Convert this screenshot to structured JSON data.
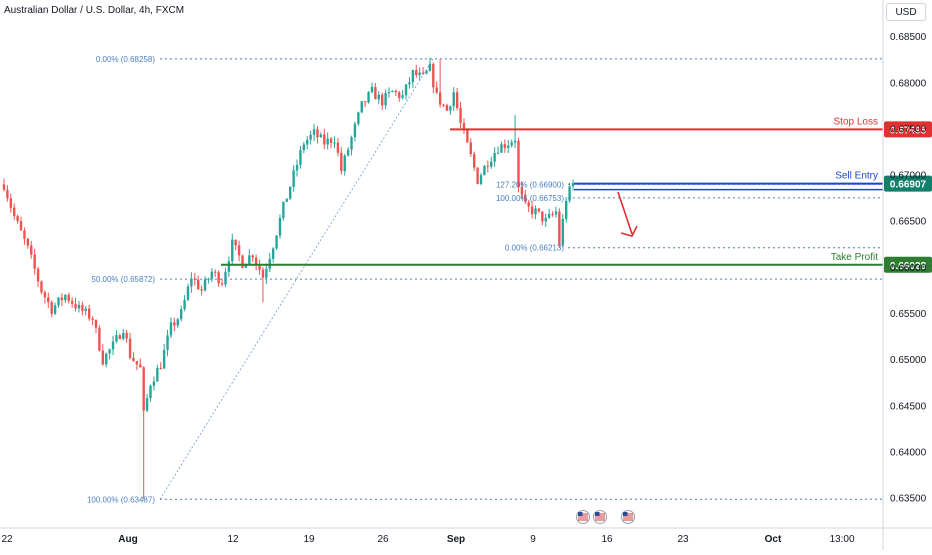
{
  "header": {
    "title": "Australian Dollar / U.S. Dollar, 4h, FXCM",
    "currency": "USD"
  },
  "colors": {
    "up": "#26a69a",
    "down": "#ef5350",
    "stop_loss": "#e03131",
    "sell_entry": "#1848cc",
    "take_profit": "#2e7d32",
    "fib": "#4a7fc2",
    "sell_entry_label_bg": "#12806b",
    "arrow": "#e03131"
  },
  "chart_data": {
    "type": "candlestick",
    "title": "Australian Dollar / U.S. Dollar, 4h, FXCM",
    "x_axis": {
      "tick_labels": [
        "22",
        "Aug",
        "12",
        "19",
        "26",
        "Sep",
        "9",
        "16",
        "23",
        "Oct",
        "13:00"
      ],
      "tick_bold": [
        false,
        true,
        false,
        false,
        false,
        true,
        false,
        false,
        false,
        true,
        false
      ]
    },
    "y_axis": {
      "position": "right",
      "range": [
        0.6345,
        0.6869
      ],
      "tick_labels": [
        "0.68500",
        "0.68000",
        "0.67500",
        "0.67000",
        "0.66500",
        "0.66000",
        "0.65500",
        "0.65000",
        "0.64500",
        "0.64000",
        "0.63500"
      ],
      "tick_values": [
        0.685,
        0.68,
        0.675,
        0.67,
        0.665,
        0.66,
        0.655,
        0.65,
        0.645,
        0.64,
        0.635
      ]
    },
    "series_points": [
      {
        "t": 0,
        "v": 0.669
      },
      {
        "t": 3,
        "v": 0.6655
      },
      {
        "t": 7,
        "v": 0.662
      },
      {
        "t": 11,
        "v": 0.6575
      },
      {
        "t": 14,
        "v": 0.6555
      },
      {
        "t": 18,
        "v": 0.657
      },
      {
        "t": 22,
        "v": 0.6555
      },
      {
        "t": 26,
        "v": 0.6545
      },
      {
        "t": 29,
        "v": 0.65
      },
      {
        "t": 32,
        "v": 0.6515
      },
      {
        "t": 35,
        "v": 0.6535
      },
      {
        "t": 37,
        "v": 0.6505
      },
      {
        "t": 40,
        "v": 0.649
      },
      {
        "t": 41,
        "v": 0.644
      },
      {
        "t": 43,
        "v": 0.6475
      },
      {
        "t": 46,
        "v": 0.6495
      },
      {
        "t": 49,
        "v": 0.6535
      },
      {
        "t": 52,
        "v": 0.655
      },
      {
        "t": 55,
        "v": 0.659
      },
      {
        "t": 58,
        "v": 0.6575
      },
      {
        "t": 61,
        "v": 0.6595
      },
      {
        "t": 64,
        "v": 0.6585
      },
      {
        "t": 67,
        "v": 0.6625
      },
      {
        "t": 70,
        "v": 0.6605
      },
      {
        "t": 73,
        "v": 0.6615
      },
      {
        "t": 76,
        "v": 0.659
      },
      {
        "t": 79,
        "v": 0.6625
      },
      {
        "t": 82,
        "v": 0.6665
      },
      {
        "t": 85,
        "v": 0.67
      },
      {
        "t": 88,
        "v": 0.6735
      },
      {
        "t": 91,
        "v": 0.6745
      },
      {
        "t": 94,
        "v": 0.6735
      },
      {
        "t": 97,
        "v": 0.674
      },
      {
        "t": 99,
        "v": 0.6705
      },
      {
        "t": 102,
        "v": 0.674
      },
      {
        "t": 105,
        "v": 0.6775
      },
      {
        "t": 108,
        "v": 0.679
      },
      {
        "t": 111,
        "v": 0.678
      },
      {
        "t": 114,
        "v": 0.679
      },
      {
        "t": 117,
        "v": 0.6785
      },
      {
        "t": 120,
        "v": 0.681
      },
      {
        "t": 123,
        "v": 0.6805
      },
      {
        "t": 125,
        "v": 0.6815
      },
      {
        "t": 127,
        "v": 0.6785
      },
      {
        "t": 130,
        "v": 0.677
      },
      {
        "t": 132,
        "v": 0.679
      },
      {
        "t": 134,
        "v": 0.6755
      },
      {
        "t": 137,
        "v": 0.672
      },
      {
        "t": 139,
        "v": 0.6695
      },
      {
        "t": 142,
        "v": 0.6715
      },
      {
        "t": 145,
        "v": 0.673
      },
      {
        "t": 148,
        "v": 0.6735
      },
      {
        "t": 150,
        "v": 0.674
      },
      {
        "t": 151,
        "v": 0.6685
      },
      {
        "t": 153,
        "v": 0.6665
      },
      {
        "t": 156,
        "v": 0.666
      },
      {
        "t": 159,
        "v": 0.665
      },
      {
        "t": 162,
        "v": 0.666
      },
      {
        "t": 163,
        "v": 0.6625
      },
      {
        "t": 165,
        "v": 0.6675
      },
      {
        "t": 167,
        "v": 0.669
      }
    ],
    "fib_retracement_1": {
      "levels": [
        {
          "label": "0.00% (0.68258)",
          "value": 0.68258
        },
        {
          "label": "50.00% (0.65872)",
          "value": 0.65872
        },
        {
          "label": "100.00% (0.63487)",
          "value": 0.63487
        }
      ]
    },
    "fib_retracement_2": {
      "levels": [
        {
          "label": "127.20% (0.66900)",
          "value": 0.669
        },
        {
          "label": "100.00% (0.66753)",
          "value": 0.66753
        },
        {
          "label": "0.00% (0.66213)",
          "value": 0.66213
        }
      ]
    },
    "trade_levels": [
      {
        "name": "Stop Loss",
        "value": 0.67495,
        "price_label": "0.67495"
      },
      {
        "name": "Sell Entry",
        "value": 0.66907,
        "price_label": "0.66907"
      },
      {
        "name": "Take Profit",
        "value": 0.66028,
        "price_label": "0.66028"
      }
    ],
    "event_markers": [
      "us-flag",
      "us-flag",
      "us-flag"
    ],
    "grid": false,
    "legend": "none"
  }
}
